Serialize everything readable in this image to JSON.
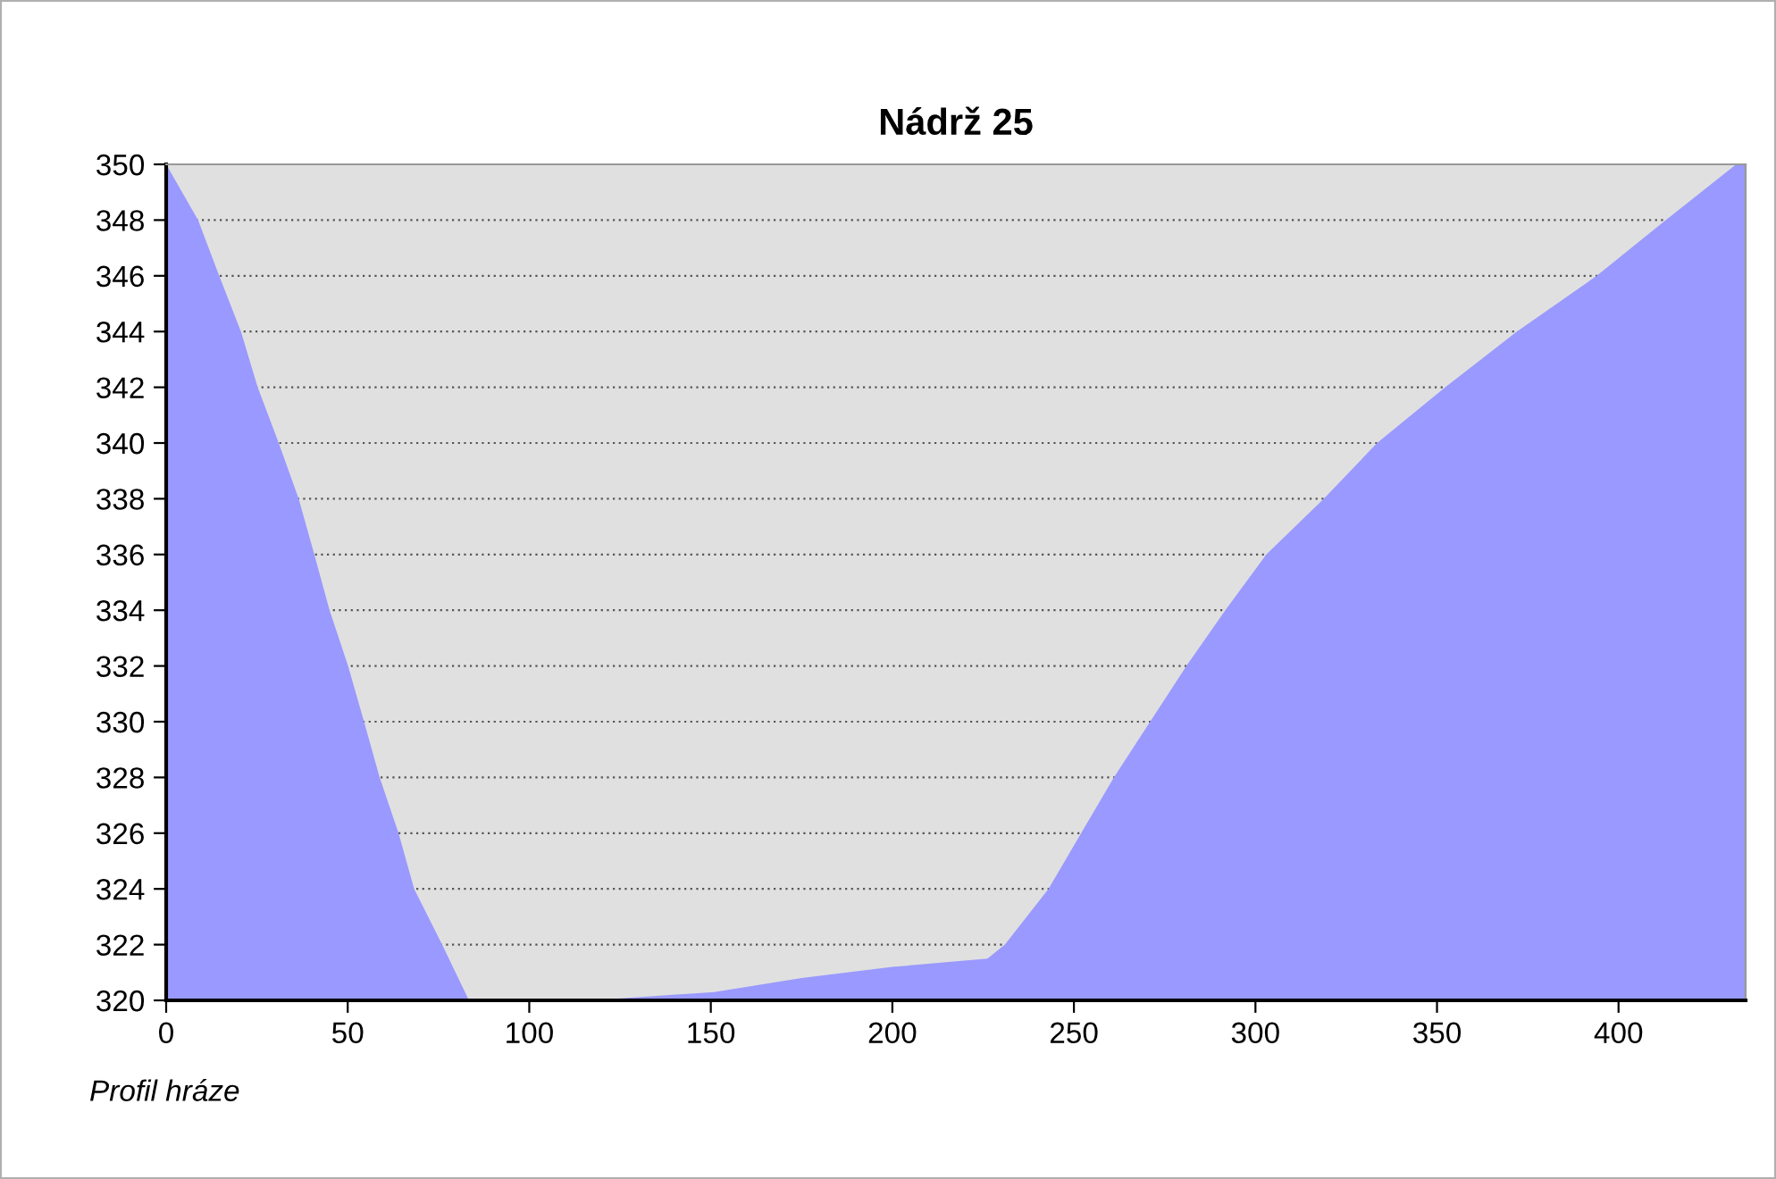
{
  "chart_data": {
    "type": "area",
    "title": "Nádrž 25",
    "x": [
      0,
      8.8,
      14.6,
      20.6,
      25.2,
      31,
      36.5,
      40.8,
      45,
      50.1,
      54.5,
      58.8,
      64,
      68.3,
      76,
      83.4,
      117.3,
      150.9,
      175,
      200,
      226.2,
      231,
      243,
      252,
      261,
      271,
      281,
      291.7,
      303,
      318.8,
      333.5,
      352.3,
      372,
      394,
      413,
      432.4,
      435
    ],
    "series": [
      {
        "color": "#9999ff",
        "values": [
          350,
          348,
          346,
          344,
          342,
          340,
          338,
          336,
          334,
          332,
          330,
          328,
          326,
          324,
          322,
          320,
          320,
          320.3,
          320.8,
          321.2,
          321.5,
          322,
          324,
          326,
          328,
          330,
          332,
          334,
          336,
          338,
          340,
          342,
          344,
          346,
          348,
          350,
          350
        ]
      }
    ],
    "xlim": [
      0,
      435
    ],
    "ylim": [
      320,
      350
    ],
    "xticks": [
      0,
      50,
      100,
      150,
      200,
      250,
      300,
      350,
      400
    ],
    "yticks": [
      320,
      322,
      324,
      326,
      328,
      330,
      332,
      334,
      336,
      338,
      340,
      342,
      344,
      346,
      348,
      350
    ],
    "grid": "y",
    "legend": false,
    "annotations": [
      "Profil hráze"
    ]
  }
}
